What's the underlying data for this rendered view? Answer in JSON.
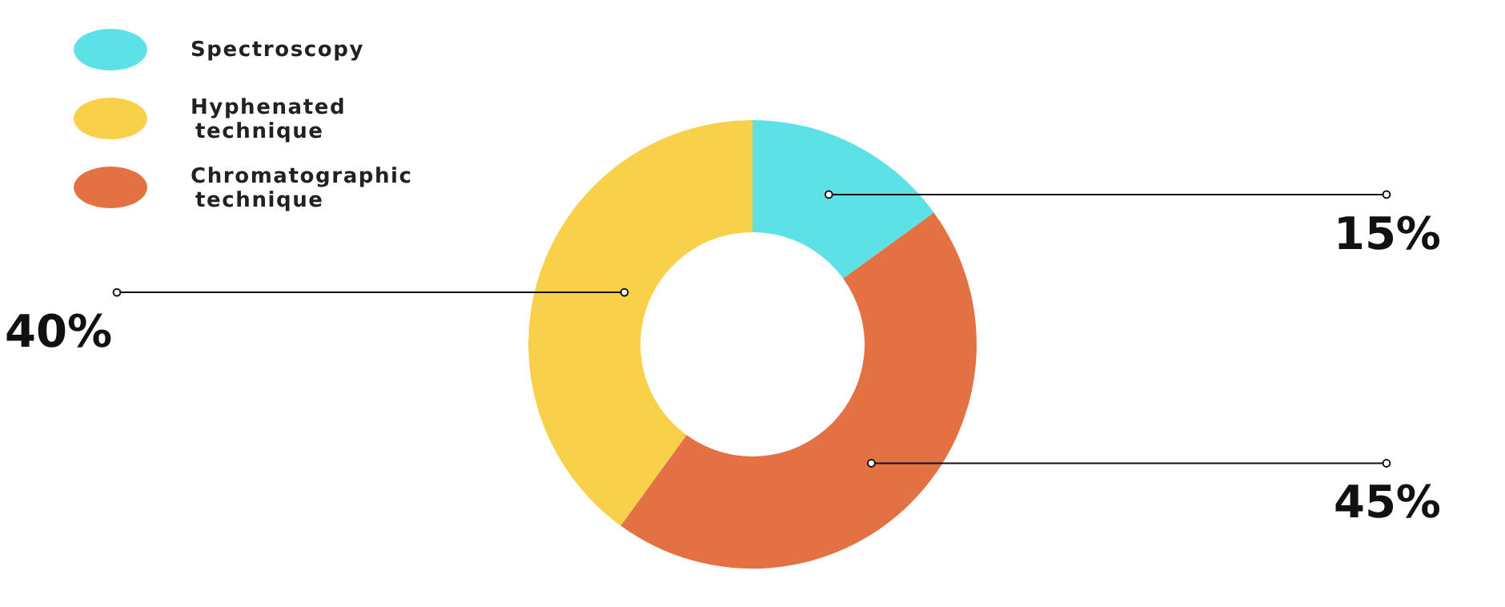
{
  "chart_data": {
    "type": "donut",
    "categories": [
      "Spectroscopy",
      "Hyphenated technique",
      "Chromatographic technique"
    ],
    "values": [
      15,
      40,
      45
    ],
    "colors": [
      "#5ce1e6",
      "#f9d04a",
      "#e37144"
    ],
    "value_labels": [
      "15%",
      "40%",
      "45%"
    ],
    "legend": "top left"
  }
}
